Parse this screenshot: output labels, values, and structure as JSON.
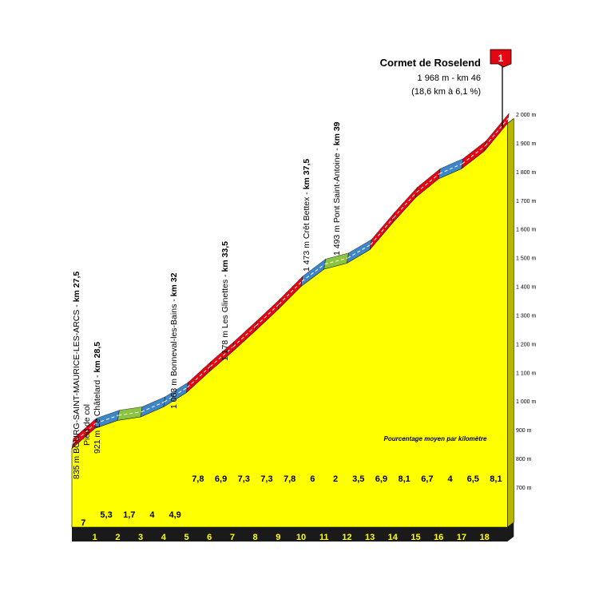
{
  "chart_data": {
    "type": "area",
    "title": "Cormet de Roselend",
    "summit_info": "1 968 m - km 46",
    "summit_stats": "(18,6 km à 6,1 %)",
    "summit_category": "1",
    "subtitle": "Pourcentage moyen par kilomètre",
    "y_unit": "m",
    "ylim": [
      700,
      2000
    ],
    "y_ticks": [
      "700 m",
      "800 m",
      "900 m",
      "1 000 m",
      "1 100 m",
      "1 200 m",
      "1 300 m",
      "1 400 m",
      "1 500 m",
      "1 600 m",
      "1 700 m",
      "1 800 m",
      "1 900 m",
      "2 000 m"
    ],
    "km_labels": [
      "1",
      "2",
      "3",
      "4",
      "5",
      "6",
      "7",
      "8",
      "9",
      "10",
      "11",
      "12",
      "13",
      "14",
      "15",
      "16",
      "17",
      "18"
    ],
    "gradients": [
      "7",
      "5,3",
      "1,7",
      "4",
      "4,9",
      "7,8",
      "6,9",
      "7,3",
      "7,3",
      "7,8",
      "6",
      "2",
      "3,5",
      "6,9",
      "8,1",
      "6,7",
      "4",
      "6,5",
      "8,1"
    ],
    "elevations": [
      835,
      905,
      933,
      945,
      980,
      1030,
      1103,
      1172,
      1245,
      1320,
      1400,
      1460,
      1481,
      1528,
      1622,
      1710,
      1775,
      1810,
      1872,
      1968
    ],
    "waypoints": [
      {
        "name": "835 m BOURG-SAINT-MAURICE-LES-ARCS - ",
        "km": "km 27,5"
      },
      {
        "name": "Pied de col",
        "km": ""
      },
      {
        "name": "921 m Le Châtelard - ",
        "km": "km 28,5"
      },
      {
        "name": "1 063 m Bonneval-les-Bains - ",
        "km": "km 32"
      },
      {
        "name": "1 178 m Les Glinettes - ",
        "km": "km 33,5"
      },
      {
        "name": "1 473 m Crêt Bettex - ",
        "km": "km 37,5"
      },
      {
        "name": "1 493 m Pont Saint-Antoine - ",
        "km": "km 39"
      }
    ],
    "colors": {
      "fill": "#ffff00",
      "red": "#e30613",
      "blue": "#3f86c8",
      "green": "#8bc53f",
      "base": "#1a1a1a",
      "flag": "#e30613"
    }
  }
}
